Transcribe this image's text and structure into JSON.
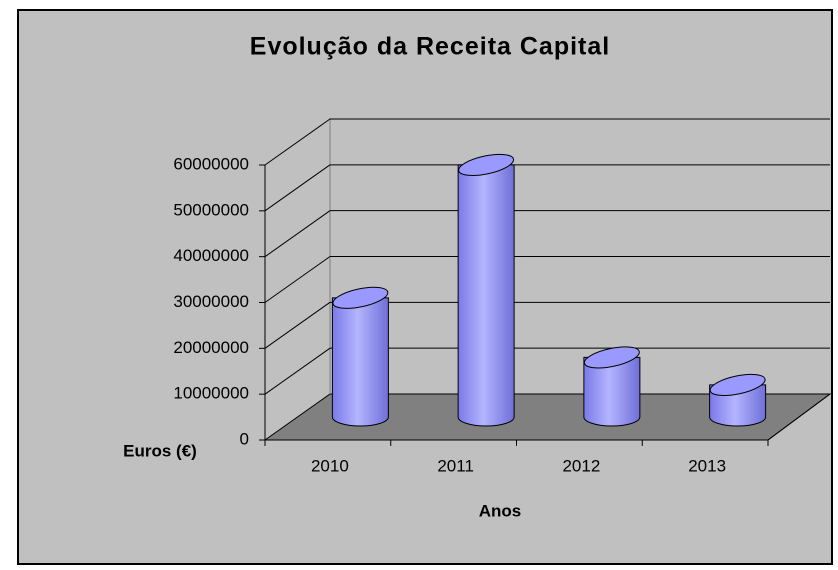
{
  "chart_data": {
    "type": "bar",
    "title": "Evolução da Receita Capital",
    "categories": [
      "2010",
      "2011",
      "2012",
      "2013"
    ],
    "values": [
      26000000,
      55000000,
      13000000,
      7000000
    ],
    "color": "#9999ff",
    "ylim": [
      0,
      60000000
    ],
    "yticks": [
      0,
      10000000,
      20000000,
      30000000,
      40000000,
      50000000,
      60000000
    ],
    "grid": true,
    "x_label": "Anos",
    "y_label": "Euros (€)"
  }
}
